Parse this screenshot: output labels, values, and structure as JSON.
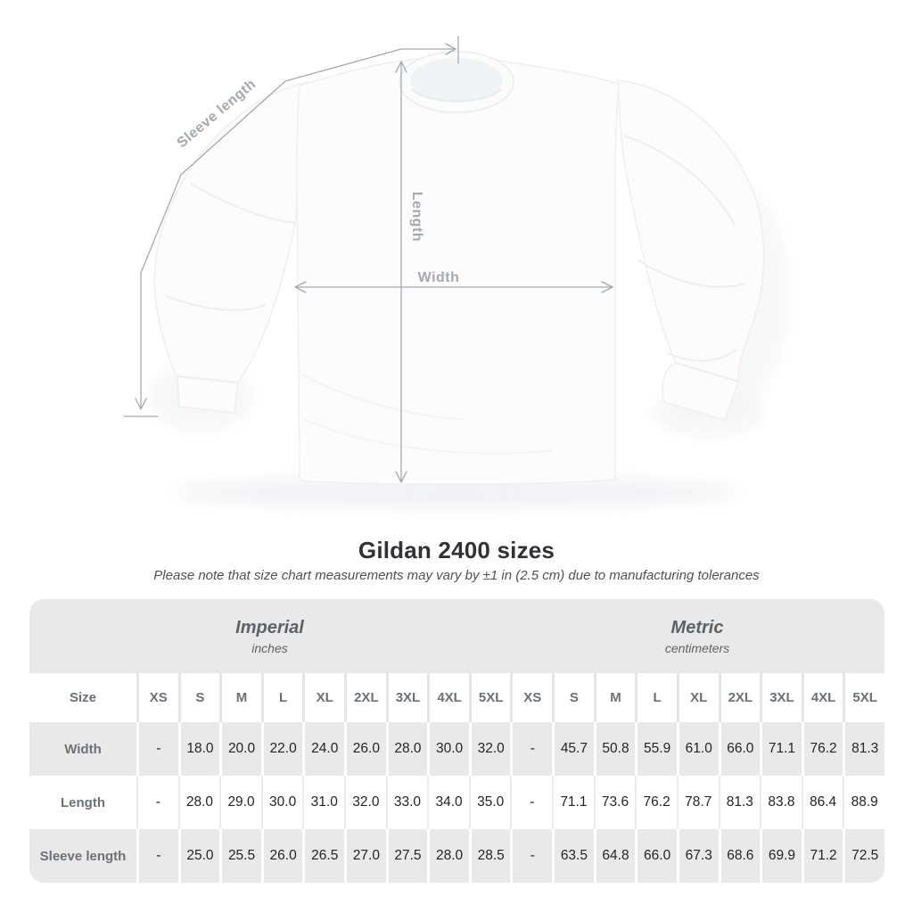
{
  "title": "Gildan 2400 sizes",
  "subtitle": "Please note that size chart measurements may vary by ±1 in (2.5 cm) due to manufacturing tolerances",
  "diagram": {
    "sleeve_length_label": "Sleeve length",
    "length_label": "Length",
    "width_label": "Width"
  },
  "chart_data": {
    "type": "table",
    "title": "Gildan 2400 sizes",
    "note": "Please note that size chart measurements may vary by ±1 in (2.5 cm) due to manufacturing tolerances",
    "size_column_header": "Size",
    "sizes": [
      "XS",
      "S",
      "M",
      "L",
      "XL",
      "2XL",
      "3XL",
      "4XL",
      "5XL"
    ],
    "column_groups": [
      {
        "label": "Imperial",
        "unit": "inches"
      },
      {
        "label": "Metric",
        "unit": "centimeters"
      }
    ],
    "rows": [
      {
        "label": "Width",
        "imperial": [
          "-",
          "18.0",
          "20.0",
          "22.0",
          "24.0",
          "26.0",
          "28.0",
          "30.0",
          "32.0"
        ],
        "metric": [
          "-",
          "45.7",
          "50.8",
          "55.9",
          "61.0",
          "66.0",
          "71.1",
          "76.2",
          "81.3"
        ]
      },
      {
        "label": "Length",
        "imperial": [
          "-",
          "28.0",
          "29.0",
          "30.0",
          "31.0",
          "32.0",
          "33.0",
          "34.0",
          "35.0"
        ],
        "metric": [
          "-",
          "71.1",
          "73.6",
          "76.2",
          "78.7",
          "81.3",
          "83.8",
          "86.4",
          "88.9"
        ]
      },
      {
        "label": "Sleeve length",
        "imperial": [
          "-",
          "25.0",
          "25.5",
          "26.0",
          "26.5",
          "27.0",
          "27.5",
          "28.0",
          "28.5"
        ],
        "metric": [
          "-",
          "63.5",
          "64.8",
          "66.0",
          "67.3",
          "68.6",
          "69.9",
          "71.2",
          "72.5"
        ]
      }
    ]
  },
  "colors": {
    "table_band": "#e9e9e9",
    "separator_white": "#ffffff",
    "separator_gray": "#e4e5e6",
    "label_text": "#6b7177",
    "value_text": "#232426",
    "title_text": "#303236",
    "subtitle_text": "#4d5156",
    "annotation": "#a4a9af"
  }
}
